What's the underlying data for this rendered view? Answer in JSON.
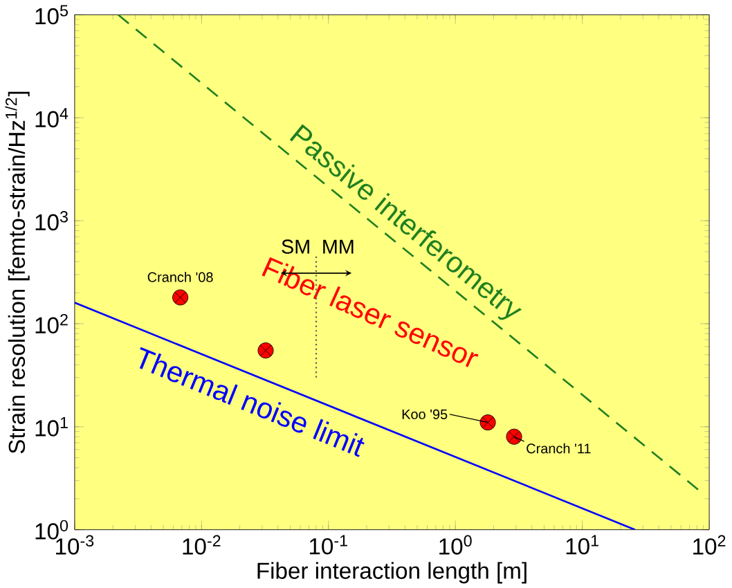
{
  "chart_data": {
    "type": "line",
    "xlabel": "Fiber interaction length [m]",
    "ylabel": "Strain resolution [femto-strain/Hz$^{1/2}$]",
    "log": "xy",
    "xlim": [
      0.001,
      100
    ],
    "ylim": [
      1,
      100000
    ],
    "xticks": [
      {
        "value": 0.001,
        "label": "10$^{-3}$"
      },
      {
        "value": 0.01,
        "label": "10$^{-2}$"
      },
      {
        "value": 0.1,
        "label": "10$^{-1}$"
      },
      {
        "value": 1,
        "label": "10$^{0}$"
      },
      {
        "value": 10,
        "label": "10$^{1}$"
      },
      {
        "value": 100,
        "label": "10$^{2}$"
      }
    ],
    "yticks": [
      {
        "value": 1,
        "label": "10$^{0}$"
      },
      {
        "value": 10,
        "label": "10$^{1}$"
      },
      {
        "value": 100,
        "label": "10$^{2}$"
      },
      {
        "value": 1000,
        "label": "10$^{3}$"
      },
      {
        "value": 10000,
        "label": "10$^{4}$"
      },
      {
        "value": 100000,
        "label": "10$^{5}$"
      }
    ],
    "grid": false,
    "series": [
      {
        "name": "Thermal noise limit",
        "color": "#0000ff",
        "line_style": "solid",
        "marker": "none",
        "x": [
          0.001,
          26
        ],
        "values": [
          160,
          1
        ]
      },
      {
        "name": "Passive interferometry",
        "color": "#208020",
        "line_style": "dashed",
        "marker": "none",
        "x": [
          0.0022,
          87
        ],
        "values": [
          100000,
          2.3
        ]
      },
      {
        "name": "Fiber laser sensor",
        "type": "scatter",
        "color": "#ff0000",
        "marker": "cross",
        "x": [
          0.0068,
          0.032,
          1.8,
          2.9
        ],
        "values": [
          180,
          55,
          11,
          8
        ]
      }
    ],
    "ref_lines": [
      {
        "axis": "x",
        "value": 0.08,
        "line_style": "dotted",
        "color": "#606060"
      }
    ],
    "annotations": [
      {
        "text": "Cranch '08",
        "x": 0.0068,
        "y": 180
      },
      {
        "text": "Koo '95",
        "x": 1.8,
        "y": 11
      },
      {
        "text": "Cranch '11",
        "x": 2.9,
        "y": 8
      },
      "SM",
      "MM"
    ]
  }
}
